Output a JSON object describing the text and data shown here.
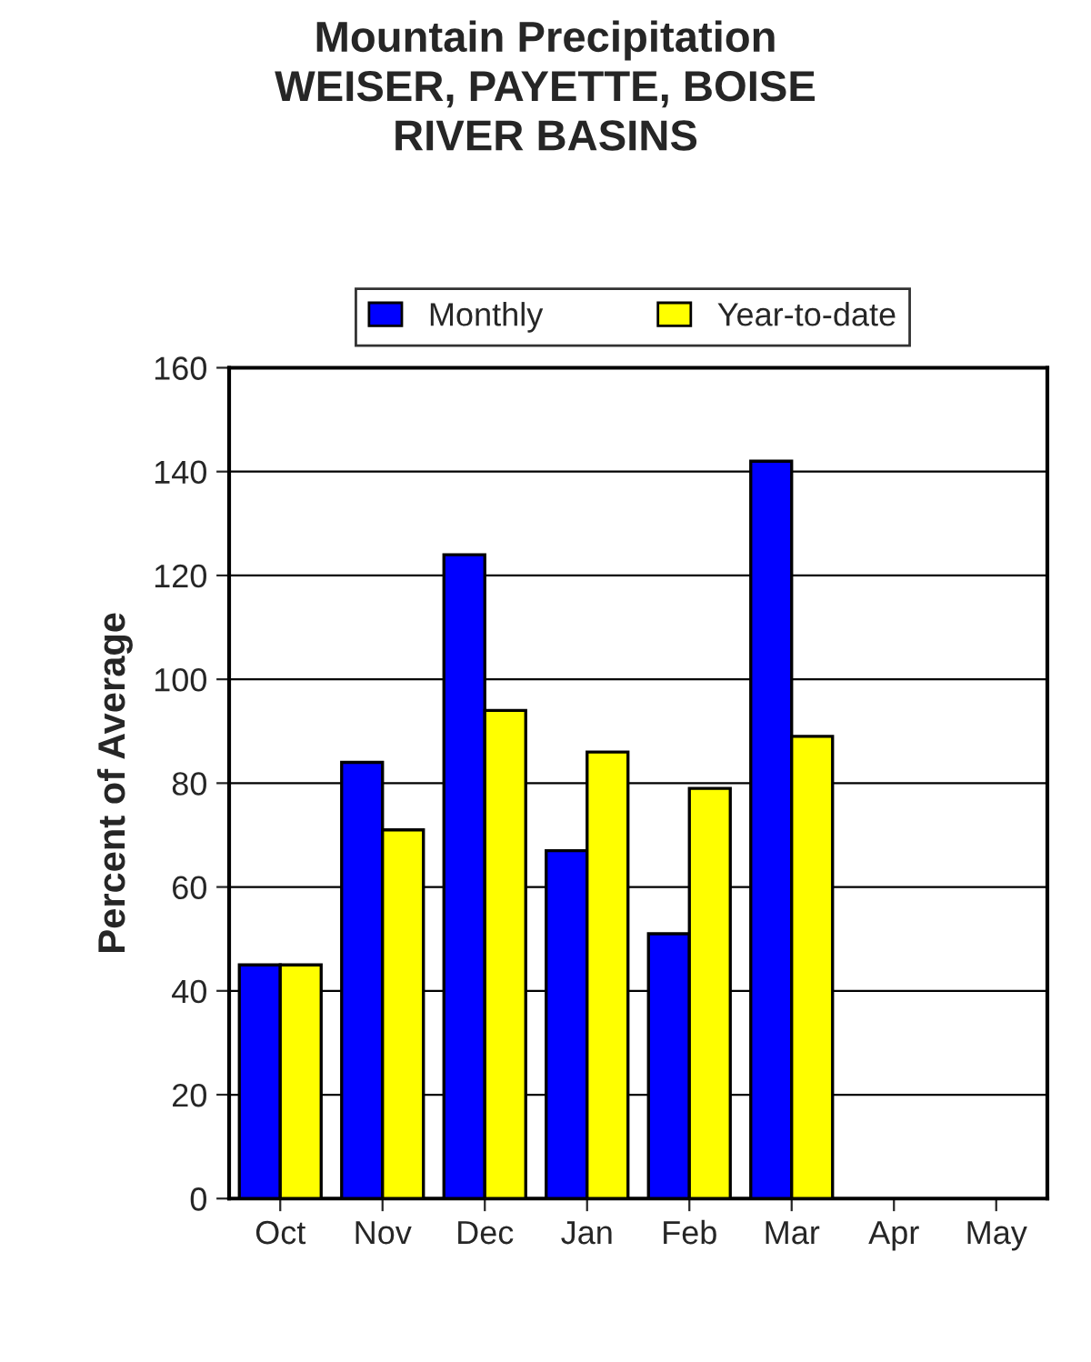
{
  "chart_data": {
    "type": "bar",
    "title": "Mountain Precipitation\nWEISER, PAYETTE, BOISE\nRIVER BASINS",
    "ylabel": "Percent of Average",
    "categories": [
      "Oct",
      "Nov",
      "Dec",
      "Jan",
      "Feb",
      "Mar",
      "Apr",
      "May"
    ],
    "series": [
      {
        "name": "Monthly",
        "color": "#0000ff",
        "values": [
          45,
          84,
          124,
          67,
          51,
          142,
          null,
          null
        ]
      },
      {
        "name": "Year-to-date",
        "color": "#ffff00",
        "values": [
          45,
          71,
          94,
          86,
          79,
          89,
          null,
          null
        ]
      }
    ],
    "ylim": [
      0,
      160
    ],
    "yticks": [
      0,
      20,
      40,
      60,
      80,
      100,
      120,
      140,
      160
    ],
    "grid": "y",
    "legend": "top"
  }
}
